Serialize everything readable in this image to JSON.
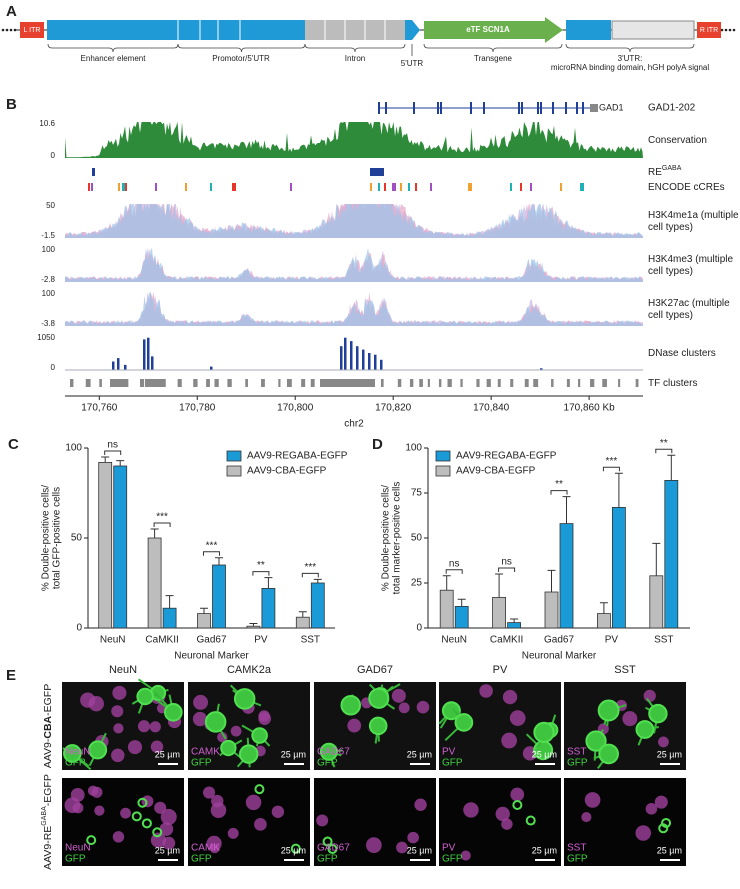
{
  "panel_a": {
    "letter": "A",
    "elements": [
      "L ITR",
      "eTF SCN1A",
      "R ITR"
    ],
    "regions": [
      "Enhancer element",
      "Promotor/5'UTR",
      "Intron",
      "5'UTR",
      "Transgene",
      "3'UTR:"
    ],
    "note": "microRNA binding domain, hGH polyA signal"
  },
  "panel_b": {
    "letter": "B",
    "gene": "GAD1-202",
    "gene_short": "GAD1",
    "tracks": [
      {
        "label": [
          "Conservation"
        ],
        "max": 10.6,
        "min": 0
      },
      {
        "label": [
          "RE"
        ],
        "sup": "GABA"
      },
      {
        "label": [
          "ENCODE cCREs"
        ]
      },
      {
        "label": [
          "H3K4me1a (multiple",
          "cell types)"
        ],
        "max": 50,
        "min": -1.5
      },
      {
        "label": [
          "H3K4me3 (multiple",
          "cell types)"
        ],
        "max": 100,
        "min": -2.8
      },
      {
        "label": [
          "H3K27ac (multiple",
          "cell types)"
        ],
        "max": 100,
        "min": -3.8
      },
      {
        "label": [
          "DNase clusters"
        ],
        "max": 1050,
        "min": 0
      },
      {
        "label": [
          "TF clusters"
        ]
      }
    ],
    "xlim": [
      170753,
      170871
    ],
    "xticks": [
      {
        "value": 170760,
        "label": "170,760"
      },
      {
        "value": 170780,
        "label": "170,780"
      },
      {
        "value": 170800,
        "label": "170,800"
      },
      {
        "value": 170820,
        "label": "170,820"
      },
      {
        "value": 170840,
        "label": "170,840"
      },
      {
        "value": 170860,
        "label": "170,860 Kb"
      }
    ],
    "xlabel": "chr2"
  },
  "chart_data": [
    {
      "type": "bar",
      "letter": "C",
      "categories": [
        "NeuN",
        "CaMKII",
        "Gad67",
        "PV",
        "SST"
      ],
      "series": [
        {
          "name": "AAV9-REGABA-EGFP",
          "color": "#1a9ad6",
          "values": [
            90,
            11,
            35,
            22,
            25
          ],
          "errors": [
            3,
            7,
            4,
            6,
            2
          ]
        },
        {
          "name": "AAV9-CBA-EGFP",
          "color": "#bdbdbd",
          "values": [
            92,
            50,
            8,
            1,
            6
          ],
          "errors": [
            3,
            5,
            3,
            1.5,
            3
          ]
        }
      ],
      "significance": [
        "ns",
        "***",
        "***",
        "**",
        "***"
      ],
      "ylim": [
        0,
        100
      ],
      "yticks": [
        0,
        50,
        100
      ],
      "ylabel": [
        "% Double-positive cells/",
        "total GFP-positive cells"
      ],
      "xlabel": "Neuronal Marker",
      "legend": "upper right"
    },
    {
      "type": "bar",
      "letter": "D",
      "categories": [
        "NeuN",
        "CaMKII",
        "Gad67",
        "PV",
        "SST"
      ],
      "series": [
        {
          "name": "AAV9-REGABA-EGFP",
          "color": "#1a9ad6",
          "values": [
            12,
            3,
            58,
            67,
            82
          ],
          "errors": [
            4,
            2,
            15,
            19,
            14
          ]
        },
        {
          "name": "AAV9-CBA-EGFP",
          "color": "#bdbdbd",
          "values": [
            21,
            17,
            20,
            8,
            29
          ],
          "errors": [
            8,
            13,
            12,
            6,
            18
          ]
        }
      ],
      "significance": [
        "ns",
        "ns",
        "**",
        "***",
        "**"
      ],
      "ylim": [
        0,
        100
      ],
      "yticks": [
        0,
        25,
        50,
        75,
        100
      ],
      "ylabel": [
        "% Double-positive cells/",
        "total marker-positive cells"
      ],
      "xlabel": "Neuronal Marker",
      "legend": "upper left"
    }
  ],
  "panel_e": {
    "letter": "E",
    "columns": [
      "NeuN",
      "CAMK2a",
      "GAD67",
      "PV",
      "SST"
    ],
    "rows": [
      {
        "prefix": "AAV9-",
        "emph": "CBA",
        "suffix": "-EGFP"
      },
      {
        "prefix": "AAV9-RE",
        "sup": "GABA",
        "suffix": "-EGFP"
      }
    ],
    "stain_labels": [
      "NeuN",
      "CAMK",
      "GAD67",
      "PV",
      "SST"
    ],
    "gfp_label": "GFP",
    "scale_label": "25 µm"
  }
}
